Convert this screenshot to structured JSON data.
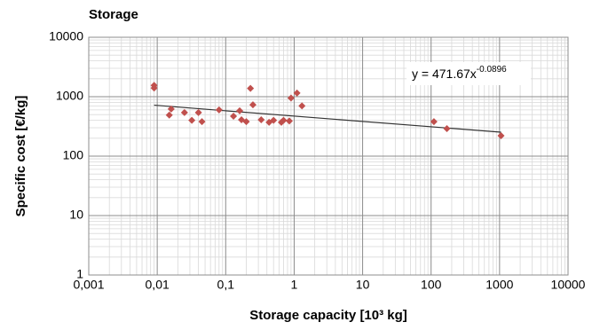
{
  "chart_data": {
    "type": "scatter",
    "title": "Storage",
    "xlabel": "Storage capacity [10³ kg]",
    "ylabel": "Specific cost [€/kg]",
    "xlog": true,
    "ylog": true,
    "grid": true,
    "minor_grid": true,
    "color": "#c0504d",
    "xlim": [
      0.001,
      10000
    ],
    "ylim": [
      1,
      10000
    ],
    "xticks": [
      {
        "value": 0.001,
        "label": "0,001"
      },
      {
        "value": 0.01,
        "label": "0,01"
      },
      {
        "value": 0.1,
        "label": "0,1"
      },
      1,
      10,
      100,
      1000,
      10000
    ],
    "yticks": [
      1,
      10,
      100,
      1000,
      10000
    ],
    "x": [
      0.009,
      0.009,
      0.016,
      0.015,
      0.025,
      0.032,
      0.04,
      0.045,
      0.08,
      0.13,
      0.16,
      0.17,
      0.2,
      0.23,
      0.25,
      0.33,
      0.43,
      0.5,
      0.65,
      0.7,
      0.85,
      0.9,
      1.1,
      1.3,
      110,
      170,
      1050
    ],
    "values": [
      1550,
      1400,
      620,
      490,
      540,
      400,
      540,
      380,
      600,
      470,
      580,
      410,
      380,
      1380,
      730,
      410,
      370,
      400,
      370,
      400,
      390,
      950,
      1150,
      700,
      380,
      290,
      220
    ],
    "trendline": {
      "label": "y = 471.67x",
      "exponent_label": "-0.0896",
      "a": 471.67,
      "b": -0.0896,
      "x": [
        0.009,
        1050
      ],
      "color": "#333333"
    }
  }
}
